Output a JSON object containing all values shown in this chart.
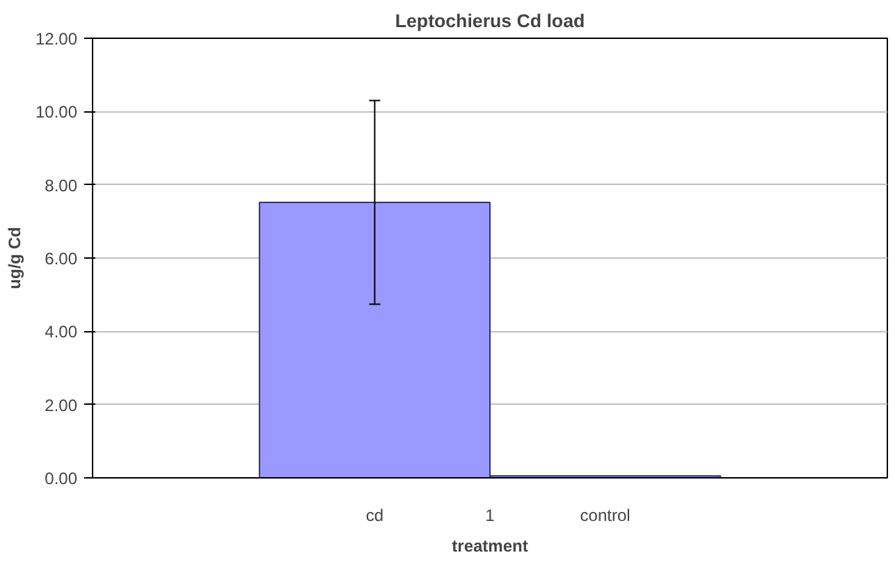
{
  "chart_data": {
    "type": "bar",
    "title": "Leptochierus Cd load",
    "xlabel": "treatment",
    "ylabel": "ug/g Cd",
    "categories": [
      "1"
    ],
    "series": [
      {
        "name": "cd",
        "color": "#9999ff",
        "values": [
          7.52
        ],
        "errors": [
          2.78
        ]
      },
      {
        "name": "control",
        "color": "#9999ff",
        "values": [
          0.05
        ]
      }
    ],
    "ylim": [
      0,
      12
    ],
    "yticks": [
      {
        "value": 0,
        "label": "0.00"
      },
      {
        "value": 2,
        "label": "2.00"
      },
      {
        "value": 4,
        "label": "4.00"
      },
      {
        "value": 6,
        "label": "6.00"
      },
      {
        "value": 8,
        "label": "8.00"
      },
      {
        "value": 10,
        "label": "10.00"
      },
      {
        "value": 12,
        "label": "12.00"
      }
    ],
    "grid": "y"
  }
}
